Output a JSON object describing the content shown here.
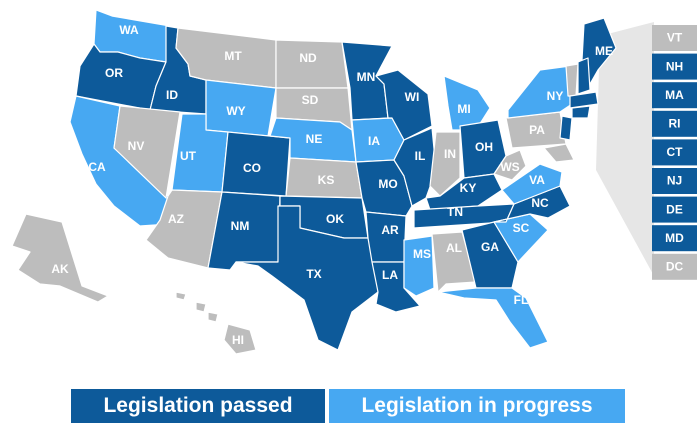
{
  "colors": {
    "passed": "#0d5a9a",
    "in_progress": "#47a8f2",
    "none": "#bdbdbd"
  },
  "legend": {
    "passed": "Legislation passed",
    "in_progress": "Legislation in progress"
  },
  "states": [
    {
      "code": "WA",
      "status": "in_progress"
    },
    {
      "code": "OR",
      "status": "passed"
    },
    {
      "code": "CA",
      "status": "in_progress"
    },
    {
      "code": "ID",
      "status": "passed"
    },
    {
      "code": "NV",
      "status": "none"
    },
    {
      "code": "MT",
      "status": "none"
    },
    {
      "code": "WY",
      "status": "in_progress"
    },
    {
      "code": "UT",
      "status": "in_progress"
    },
    {
      "code": "AZ",
      "status": "none"
    },
    {
      "code": "CO",
      "status": "passed"
    },
    {
      "code": "NM",
      "status": "passed"
    },
    {
      "code": "ND",
      "status": "none"
    },
    {
      "code": "SD",
      "status": "none"
    },
    {
      "code": "NE",
      "status": "in_progress"
    },
    {
      "code": "KS",
      "status": "none"
    },
    {
      "code": "OK",
      "status": "passed"
    },
    {
      "code": "TX",
      "status": "passed"
    },
    {
      "code": "MN",
      "status": "passed"
    },
    {
      "code": "IA",
      "status": "in_progress"
    },
    {
      "code": "MO",
      "status": "passed"
    },
    {
      "code": "AR",
      "status": "passed"
    },
    {
      "code": "LA",
      "status": "passed"
    },
    {
      "code": "WI",
      "status": "passed"
    },
    {
      "code": "IL",
      "status": "passed"
    },
    {
      "code": "MI",
      "status": "in_progress"
    },
    {
      "code": "IN",
      "status": "none"
    },
    {
      "code": "OH",
      "status": "passed"
    },
    {
      "code": "KY",
      "status": "passed"
    },
    {
      "code": "TN",
      "status": "passed"
    },
    {
      "code": "MS",
      "status": "in_progress"
    },
    {
      "code": "AL",
      "status": "none"
    },
    {
      "code": "GA",
      "status": "passed"
    },
    {
      "code": "FL",
      "status": "in_progress"
    },
    {
      "code": "SC",
      "status": "in_progress"
    },
    {
      "code": "NC",
      "status": "passed"
    },
    {
      "code": "VA",
      "status": "in_progress"
    },
    {
      "code": "WS",
      "status": "none"
    },
    {
      "code": "PA",
      "status": "none"
    },
    {
      "code": "NY",
      "status": "in_progress"
    },
    {
      "code": "ME",
      "status": "passed"
    },
    {
      "code": "AK",
      "status": "none"
    },
    {
      "code": "HI",
      "status": "none"
    }
  ],
  "northeast_boxes": [
    {
      "code": "VT",
      "status": "none"
    },
    {
      "code": "NH",
      "status": "passed"
    },
    {
      "code": "MA",
      "status": "passed"
    },
    {
      "code": "RI",
      "status": "passed"
    },
    {
      "code": "CT",
      "status": "passed"
    },
    {
      "code": "NJ",
      "status": "passed"
    },
    {
      "code": "DE",
      "status": "passed"
    },
    {
      "code": "MD",
      "status": "passed"
    },
    {
      "code": "DC",
      "status": "none"
    }
  ]
}
